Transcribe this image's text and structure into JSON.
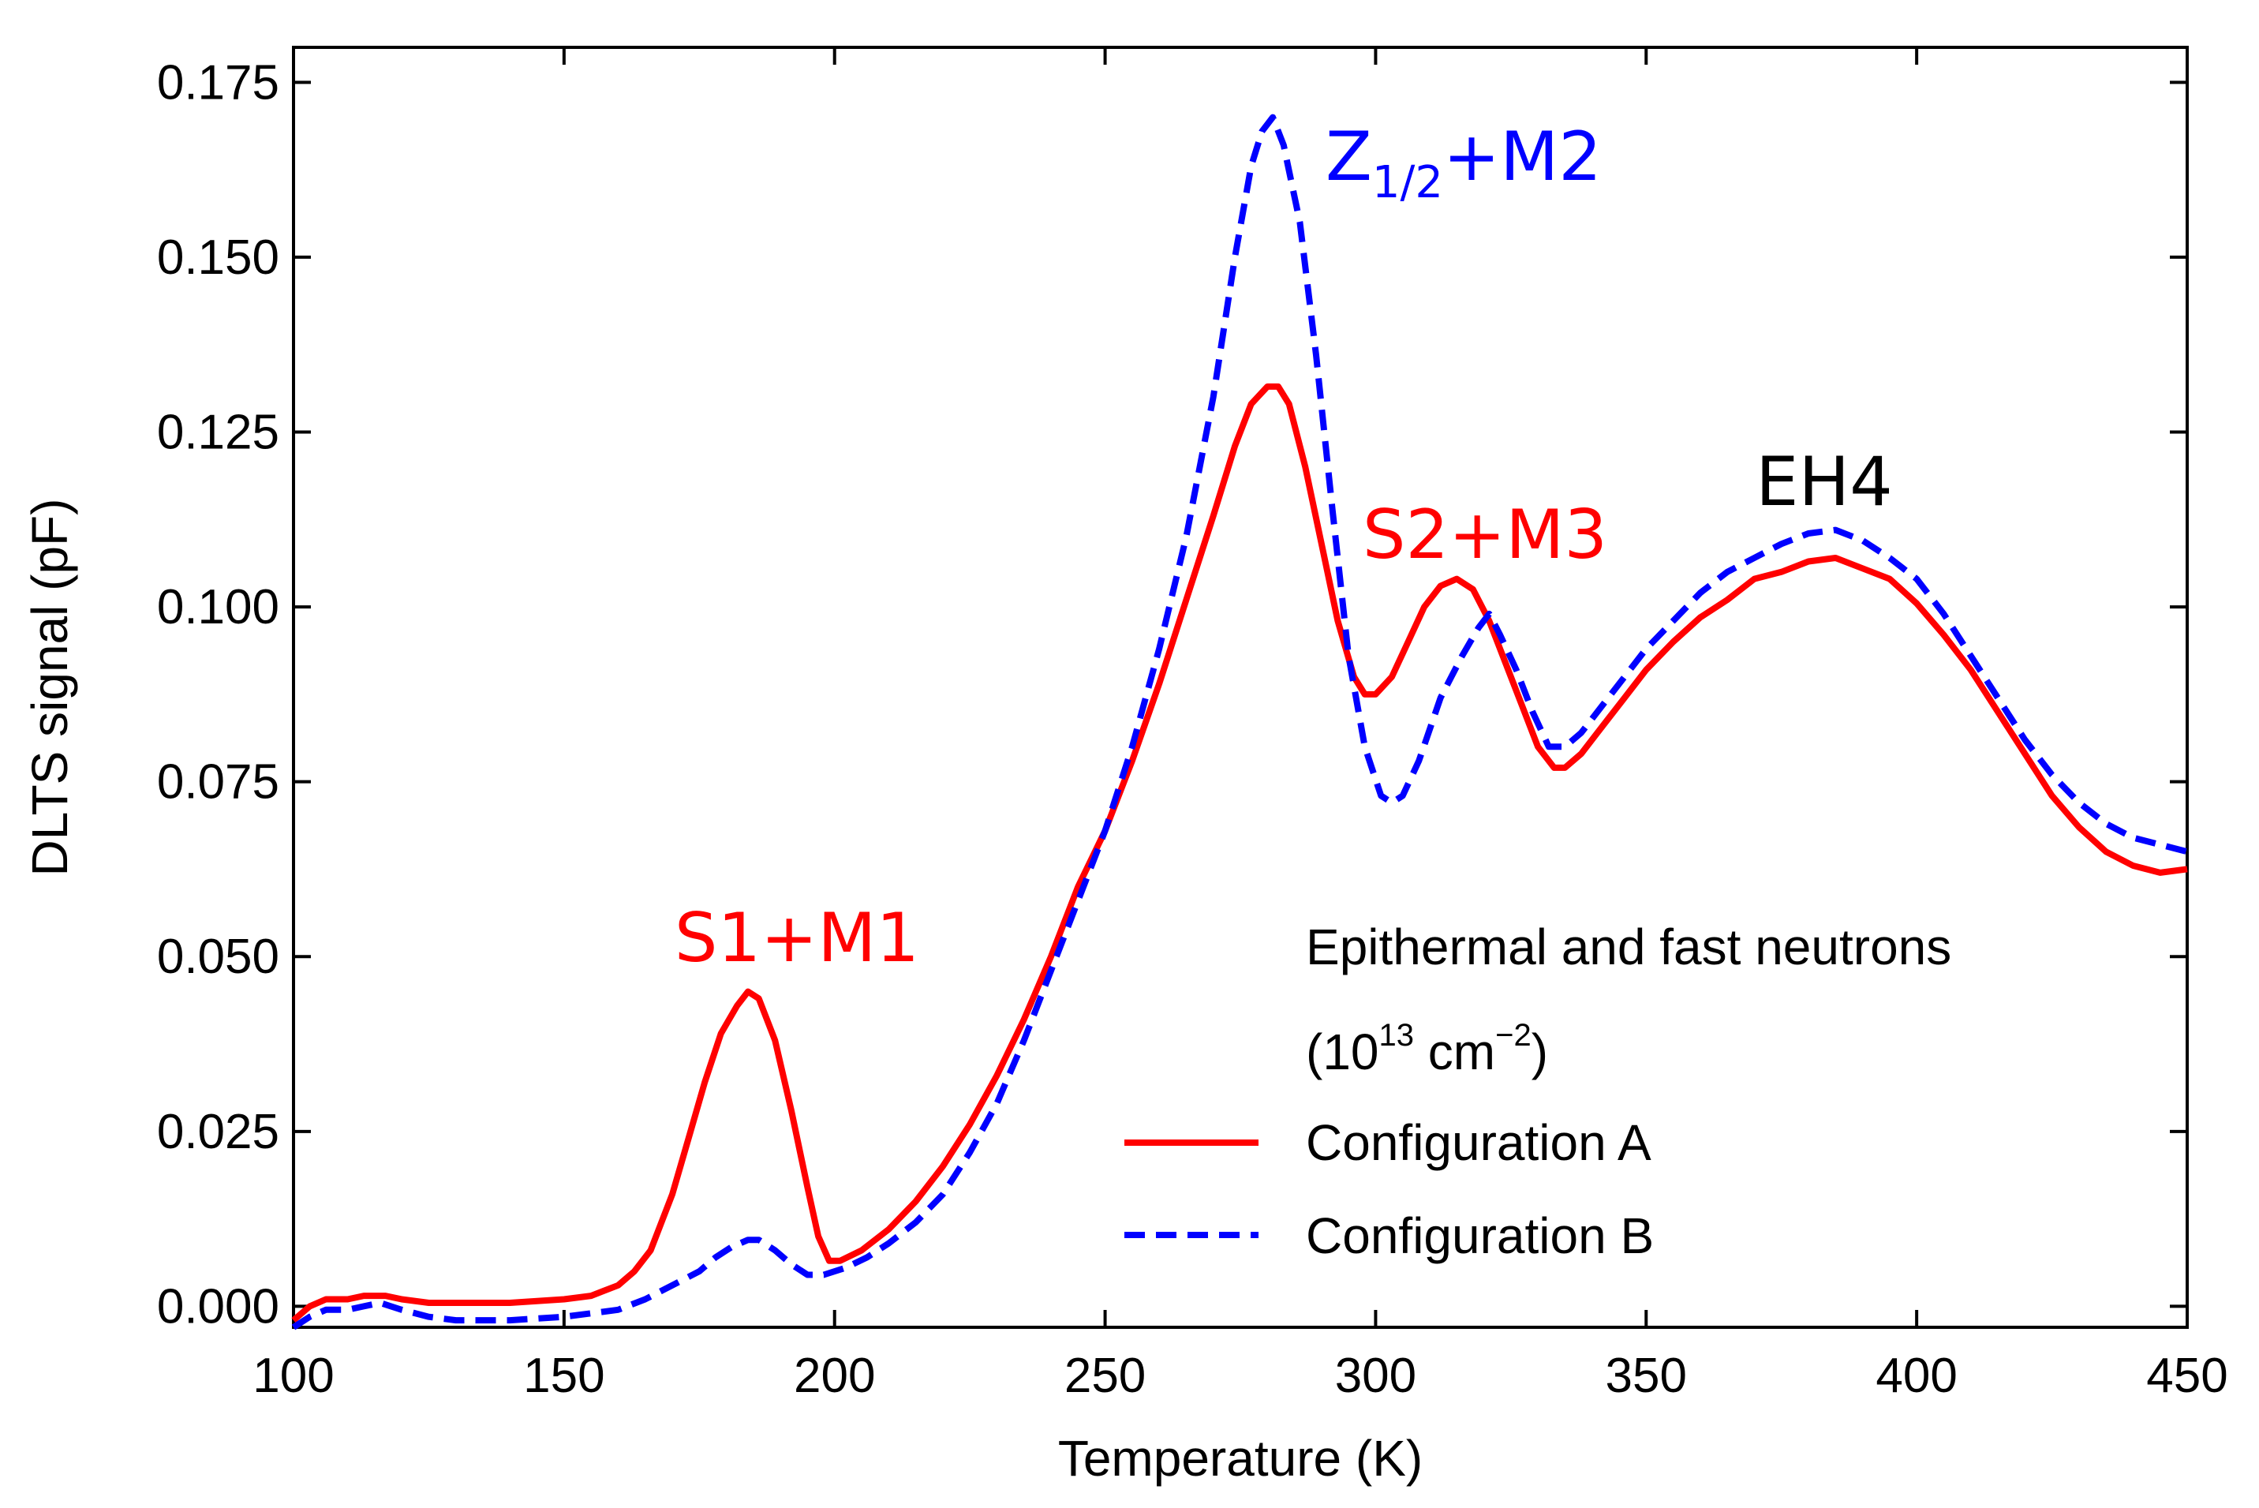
{
  "chart_data": {
    "type": "line",
    "xlabel": "Temperature (K)",
    "ylabel": "DLTS signal (pF)",
    "xlim": [
      100,
      450
    ],
    "ylim": [
      -0.003,
      0.18
    ],
    "x_ticks": [
      100,
      150,
      200,
      250,
      300,
      350,
      400,
      450
    ],
    "y_ticks": [
      0.0,
      0.025,
      0.05,
      0.075,
      0.1,
      0.125,
      0.15,
      0.175
    ],
    "grid": false,
    "legend": {
      "placement": "lower-right",
      "title_line1": "Epithermal and fast neutrons",
      "title_line2_prefix": "(10",
      "title_line2_exp1": "13",
      "title_line2_mid": " cm",
      "title_line2_exp2": "−2",
      "title_line2_suffix": ")",
      "entries": [
        "Configuration A",
        "Configuration B"
      ]
    },
    "series": [
      {
        "name": "Configuration A",
        "color": "#ff0000",
        "style": "solid",
        "points": [
          [
            100,
            -0.002
          ],
          [
            103,
            0.0
          ],
          [
            106,
            0.001
          ],
          [
            110,
            0.001
          ],
          [
            113,
            0.0015
          ],
          [
            117,
            0.0015
          ],
          [
            120,
            0.001
          ],
          [
            125,
            0.0005
          ],
          [
            130,
            0.0005
          ],
          [
            140,
            0.0005
          ],
          [
            150,
            0.001
          ],
          [
            155,
            0.0015
          ],
          [
            160,
            0.003
          ],
          [
            163,
            0.005
          ],
          [
            166,
            0.008
          ],
          [
            170,
            0.016
          ],
          [
            173,
            0.024
          ],
          [
            176,
            0.032
          ],
          [
            179,
            0.039
          ],
          [
            182,
            0.043
          ],
          [
            184,
            0.045
          ],
          [
            186,
            0.044
          ],
          [
            189,
            0.038
          ],
          [
            192,
            0.028
          ],
          [
            195,
            0.017
          ],
          [
            197,
            0.01
          ],
          [
            199,
            0.0065
          ],
          [
            201,
            0.0065
          ],
          [
            205,
            0.008
          ],
          [
            210,
            0.011
          ],
          [
            215,
            0.015
          ],
          [
            220,
            0.02
          ],
          [
            225,
            0.026
          ],
          [
            230,
            0.033
          ],
          [
            235,
            0.041
          ],
          [
            240,
            0.05
          ],
          [
            245,
            0.06
          ],
          [
            250,
            0.068
          ],
          [
            255,
            0.078
          ],
          [
            260,
            0.089
          ],
          [
            265,
            0.101
          ],
          [
            270,
            0.113
          ],
          [
            274,
            0.123
          ],
          [
            277,
            0.129
          ],
          [
            280,
            0.1315
          ],
          [
            282,
            0.1315
          ],
          [
            284,
            0.129
          ],
          [
            287,
            0.12
          ],
          [
            290,
            0.109
          ],
          [
            293,
            0.098
          ],
          [
            296,
            0.09
          ],
          [
            298,
            0.0875
          ],
          [
            300,
            0.0875
          ],
          [
            303,
            0.09
          ],
          [
            306,
            0.095
          ],
          [
            309,
            0.1
          ],
          [
            312,
            0.103
          ],
          [
            315,
            0.104
          ],
          [
            318,
            0.1025
          ],
          [
            321,
            0.098
          ],
          [
            324,
            0.092
          ],
          [
            327,
            0.086
          ],
          [
            330,
            0.08
          ],
          [
            333,
            0.077
          ],
          [
            335,
            0.077
          ],
          [
            338,
            0.079
          ],
          [
            342,
            0.083
          ],
          [
            346,
            0.087
          ],
          [
            350,
            0.091
          ],
          [
            355,
            0.095
          ],
          [
            360,
            0.0985
          ],
          [
            365,
            0.101
          ],
          [
            370,
            0.104
          ],
          [
            375,
            0.105
          ],
          [
            380,
            0.1065
          ],
          [
            385,
            0.107
          ],
          [
            390,
            0.1055
          ],
          [
            395,
            0.104
          ],
          [
            400,
            0.1005
          ],
          [
            405,
            0.096
          ],
          [
            410,
            0.091
          ],
          [
            415,
            0.085
          ],
          [
            420,
            0.079
          ],
          [
            425,
            0.073
          ],
          [
            430,
            0.0685
          ],
          [
            435,
            0.065
          ],
          [
            440,
            0.063
          ],
          [
            445,
            0.062
          ],
          [
            450,
            0.0625
          ]
        ]
      },
      {
        "name": "Configuration B",
        "color": "#0000ff",
        "style": "dashed",
        "points": [
          [
            100,
            -0.003
          ],
          [
            103,
            -0.0015
          ],
          [
            106,
            -0.0005
          ],
          [
            110,
            -0.0005
          ],
          [
            113,
            0.0
          ],
          [
            116,
            0.0005
          ],
          [
            120,
            -0.0005
          ],
          [
            125,
            -0.0015
          ],
          [
            130,
            -0.002
          ],
          [
            140,
            -0.002
          ],
          [
            150,
            -0.0015
          ],
          [
            155,
            -0.001
          ],
          [
            160,
            -0.0005
          ],
          [
            165,
            0.001
          ],
          [
            170,
            0.003
          ],
          [
            175,
            0.005
          ],
          [
            178,
            0.007
          ],
          [
            181,
            0.0085
          ],
          [
            184,
            0.0095
          ],
          [
            186,
            0.0095
          ],
          [
            189,
            0.008
          ],
          [
            192,
            0.006
          ],
          [
            195,
            0.0045
          ],
          [
            198,
            0.0045
          ],
          [
            202,
            0.0055
          ],
          [
            206,
            0.007
          ],
          [
            210,
            0.009
          ],
          [
            215,
            0.012
          ],
          [
            220,
            0.016
          ],
          [
            225,
            0.022
          ],
          [
            230,
            0.029
          ],
          [
            235,
            0.038
          ],
          [
            240,
            0.048
          ],
          [
            245,
            0.058
          ],
          [
            250,
            0.068
          ],
          [
            255,
            0.08
          ],
          [
            260,
            0.094
          ],
          [
            265,
            0.11
          ],
          [
            270,
            0.13
          ],
          [
            274,
            0.15
          ],
          [
            277,
            0.163
          ],
          [
            279,
            0.168
          ],
          [
            281,
            0.17
          ],
          [
            283,
            0.166
          ],
          [
            286,
            0.155
          ],
          [
            289,
            0.136
          ],
          [
            292,
            0.114
          ],
          [
            295,
            0.093
          ],
          [
            298,
            0.08
          ],
          [
            301,
            0.073
          ],
          [
            303,
            0.072
          ],
          [
            305,
            0.073
          ],
          [
            308,
            0.078
          ],
          [
            312,
            0.087
          ],
          [
            316,
            0.093
          ],
          [
            319,
            0.097
          ],
          [
            321,
            0.099
          ],
          [
            323,
            0.096
          ],
          [
            326,
            0.091
          ],
          [
            329,
            0.085
          ],
          [
            332,
            0.08
          ],
          [
            335,
            0.08
          ],
          [
            338,
            0.082
          ],
          [
            342,
            0.086
          ],
          [
            346,
            0.09
          ],
          [
            350,
            0.094
          ],
          [
            355,
            0.098
          ],
          [
            360,
            0.102
          ],
          [
            365,
            0.105
          ],
          [
            370,
            0.107
          ],
          [
            375,
            0.109
          ],
          [
            380,
            0.1105
          ],
          [
            385,
            0.111
          ],
          [
            390,
            0.1095
          ],
          [
            395,
            0.107
          ],
          [
            400,
            0.104
          ],
          [
            405,
            0.099
          ],
          [
            410,
            0.093
          ],
          [
            415,
            0.087
          ],
          [
            420,
            0.081
          ],
          [
            425,
            0.076
          ],
          [
            430,
            0.072
          ],
          [
            435,
            0.069
          ],
          [
            440,
            0.067
          ],
          [
            445,
            0.066
          ],
          [
            450,
            0.065
          ]
        ]
      }
    ],
    "annotations": [
      {
        "id": "s1m1",
        "text": "S1+M1",
        "color": "#ff0000"
      },
      {
        "id": "z12m2",
        "main": "Z",
        "sub": "1/2",
        "rest": "+M2",
        "color": "#0000ff"
      },
      {
        "id": "s2m3",
        "text": "S2+M3",
        "color": "#ff0000"
      },
      {
        "id": "eh4",
        "text": "EH4",
        "color": "#000000"
      }
    ]
  }
}
